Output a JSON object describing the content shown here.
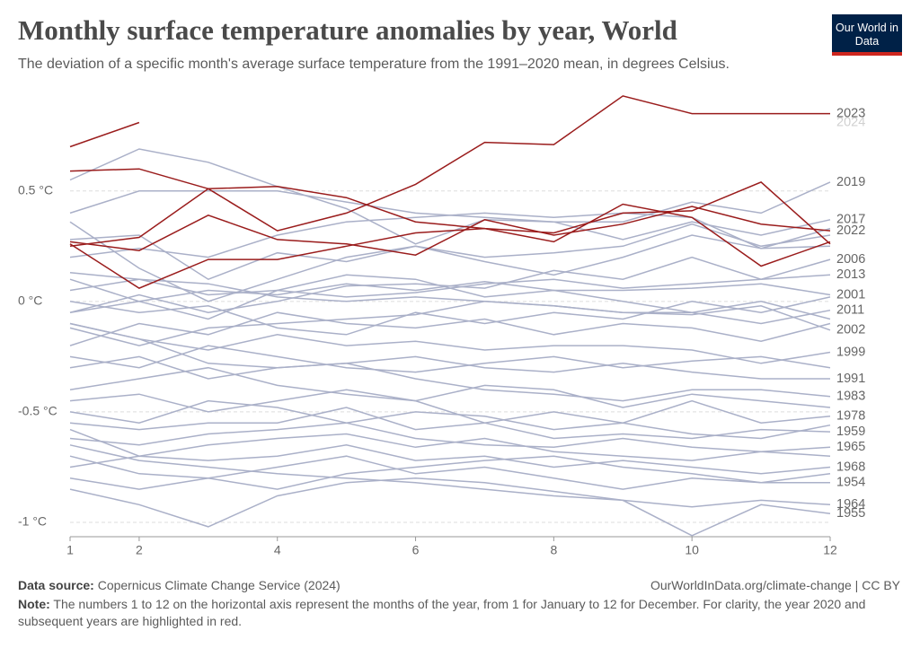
{
  "header": {
    "logo": "Our World in Data"
  },
  "footer": {
    "source_label": "Data source:",
    "source": "Copernicus Climate Change Service (2024)",
    "link": "OurWorldInData.org/climate-change | CC BY",
    "note_label": "Note:",
    "note": "The numbers 1 to 12 on the horizontal axis represent the months of the year, from 1 for January to 12 for December. For clarity, the year 2020 and subsequent years are highlighted in red."
  },
  "chart_data": {
    "type": "line",
    "title": "Monthly surface temperature anomalies by year, World",
    "subtitle": "The deviation of a specific month's average surface temperature from the 1991–2020 mean, in degrees Celsius.",
    "x": [
      1,
      2,
      3,
      4,
      5,
      6,
      7,
      8,
      9,
      10,
      11,
      12
    ],
    "xlim": [
      1,
      12
    ],
    "xticks": [
      1,
      2,
      4,
      6,
      8,
      10,
      12
    ],
    "ylim": [
      -1.065,
      0.95
    ],
    "yticks": [
      {
        "value": 0.5,
        "label": "0.5 °C"
      },
      {
        "value": 0,
        "label": "0 °C"
      },
      {
        "value": -0.5,
        "label": "-0.5 °C"
      },
      {
        "value": -1,
        "label": "-1 °C"
      }
    ],
    "grid": true,
    "series": [
      {
        "color": "#aab0c8",
        "values": [
          0.28,
          0.3,
          0.1,
          0.22,
          0.18,
          0.25,
          0.2,
          0.22,
          0.25,
          0.35,
          0.25,
          0.3
        ]
      },
      {
        "color": "#aab0c8",
        "values": [
          0.2,
          0.24,
          0.2,
          0.3,
          0.36,
          0.38,
          0.4,
          0.38,
          0.4,
          0.38,
          0.24,
          0.33
        ]
      },
      {
        "color": "#aab0c8",
        "values": [
          0.36,
          0.15,
          0.0,
          0.1,
          0.2,
          0.25,
          0.18,
          0.12,
          0.2,
          0.3,
          0.24,
          0.25
        ]
      },
      {
        "color": "#aab0c8",
        "values": [
          0.1,
          0.0,
          -0.08,
          0.05,
          0.12,
          0.1,
          0.02,
          0.05,
          0.0,
          -0.05,
          0.0,
          -0.08
        ]
      },
      {
        "color": "#aab0c8",
        "values": [
          -0.2,
          -0.1,
          -0.15,
          -0.05,
          -0.1,
          -0.12,
          -0.08,
          -0.15,
          -0.1,
          -0.12,
          -0.18,
          -0.1
        ]
      },
      {
        "color": "#aab0c8",
        "values": [
          -0.4,
          -0.35,
          -0.3,
          -0.38,
          -0.42,
          -0.45,
          -0.38,
          -0.4,
          -0.48,
          -0.42,
          -0.45,
          -0.48
        ]
      },
      {
        "color": "#aab0c8",
        "values": [
          -0.5,
          -0.55,
          -0.45,
          -0.48,
          -0.55,
          -0.5,
          -0.52,
          -0.58,
          -0.55,
          -0.6,
          -0.62,
          -0.56
        ]
      },
      {
        "color": "#aab0c8",
        "values": [
          -0.58,
          -0.7,
          -0.65,
          -0.62,
          -0.6,
          -0.66,
          -0.62,
          -0.68,
          -0.7,
          -0.72,
          -0.68,
          -0.7
        ]
      },
      {
        "color": "#aab0c8",
        "values": [
          -0.8,
          -0.85,
          -0.8,
          -0.85,
          -0.78,
          -0.75,
          -0.72,
          -0.7,
          -0.75,
          -0.78,
          -0.82,
          -0.78
        ]
      },
      {
        "color": "#aab0c8",
        "values": [
          -0.25,
          -0.3,
          -0.2,
          -0.25,
          -0.3,
          -0.32,
          -0.28,
          -0.25,
          -0.3,
          -0.27,
          -0.25,
          -0.3
        ]
      },
      {
        "color": "#aab0c8",
        "values": [
          0.0,
          -0.05,
          -0.02,
          -0.12,
          -0.15,
          -0.05,
          -0.1,
          -0.05,
          -0.08,
          0.0,
          -0.05,
          0.02
        ]
      },
      {
        "name": "2019",
        "color": "#aab0c8",
        "values": [
          0.4,
          0.5,
          0.5,
          0.5,
          0.45,
          0.4,
          0.38,
          0.36,
          0.36,
          0.45,
          0.4,
          0.54
        ]
      },
      {
        "name": "2017",
        "color": "#aab0c8",
        "values": [
          0.55,
          0.69,
          0.63,
          0.52,
          0.42,
          0.26,
          0.37,
          0.36,
          0.28,
          0.36,
          0.3,
          0.37
        ]
      },
      {
        "name": "2006",
        "color": "#aab0c8",
        "values": [
          -0.05,
          0.03,
          -0.05,
          0.0,
          0.07,
          0.08,
          0.06,
          0.14,
          0.1,
          0.2,
          0.1,
          0.19
        ]
      },
      {
        "name": "2013",
        "color": "#aab0c8",
        "values": [
          0.05,
          0.1,
          0.03,
          0.05,
          0.02,
          0.04,
          0.08,
          0.1,
          0.06,
          0.08,
          0.1,
          0.12
        ]
      },
      {
        "name": "2001",
        "color": "#aab0c8",
        "values": [
          -0.05,
          0.0,
          0.05,
          0.03,
          0.08,
          0.05,
          0.09,
          0.05,
          0.05,
          0.06,
          0.08,
          0.03
        ]
      },
      {
        "name": "2011",
        "color": "#aab0c8",
        "values": [
          -0.12,
          -0.2,
          -0.12,
          -0.1,
          -0.08,
          -0.06,
          0.0,
          -0.02,
          -0.05,
          -0.05,
          -0.1,
          -0.04
        ]
      },
      {
        "name": "2002",
        "color": "#aab0c8",
        "values": [
          0.13,
          0.1,
          0.08,
          0.02,
          0.0,
          0.02,
          0.0,
          -0.02,
          -0.05,
          -0.06,
          -0.02,
          -0.13
        ]
      },
      {
        "name": "1999",
        "color": "#aab0c8",
        "values": [
          -0.1,
          -0.17,
          -0.22,
          -0.15,
          -0.2,
          -0.18,
          -0.22,
          -0.2,
          -0.2,
          -0.22,
          -0.28,
          -0.23
        ]
      },
      {
        "name": "1991",
        "color": "#aab0c8",
        "values": [
          -0.3,
          -0.25,
          -0.35,
          -0.3,
          -0.28,
          -0.25,
          -0.3,
          -0.32,
          -0.28,
          -0.32,
          -0.35,
          -0.35
        ]
      },
      {
        "name": "1983",
        "color": "#aab0c8",
        "values": [
          -0.1,
          -0.17,
          -0.28,
          -0.3,
          -0.28,
          -0.35,
          -0.4,
          -0.42,
          -0.45,
          -0.4,
          -0.4,
          -0.43
        ]
      },
      {
        "name": "1978",
        "color": "#aab0c8",
        "values": [
          -0.45,
          -0.42,
          -0.5,
          -0.45,
          -0.4,
          -0.45,
          -0.55,
          -0.5,
          -0.55,
          -0.45,
          -0.55,
          -0.52
        ]
      },
      {
        "name": "1959",
        "color": "#aab0c8",
        "values": [
          -0.55,
          -0.58,
          -0.55,
          -0.55,
          -0.48,
          -0.58,
          -0.55,
          -0.62,
          -0.6,
          -0.62,
          -0.58,
          -0.59
        ]
      },
      {
        "name": "1965",
        "color": "#aab0c8",
        "values": [
          -0.62,
          -0.65,
          -0.6,
          -0.58,
          -0.55,
          -0.62,
          -0.65,
          -0.66,
          -0.62,
          -0.66,
          -0.68,
          -0.66
        ]
      },
      {
        "name": "1968",
        "color": "#aab0c8",
        "values": [
          -0.75,
          -0.7,
          -0.72,
          -0.7,
          -0.65,
          -0.72,
          -0.7,
          -0.75,
          -0.72,
          -0.75,
          -0.78,
          -0.75
        ]
      },
      {
        "name": "1954",
        "color": "#aab0c8",
        "values": [
          -0.7,
          -0.78,
          -0.8,
          -0.75,
          -0.7,
          -0.78,
          -0.75,
          -0.8,
          -0.85,
          -0.8,
          -0.82,
          -0.82
        ]
      },
      {
        "name": "1964",
        "color": "#aab0c8",
        "values": [
          -0.65,
          -0.72,
          -0.75,
          -0.78,
          -0.8,
          -0.82,
          -0.85,
          -0.88,
          -0.9,
          -0.93,
          -0.9,
          -0.92
        ]
      },
      {
        "name": "1955",
        "color": "#aab0c8",
        "values": [
          -0.85,
          -0.92,
          -1.02,
          -0.88,
          -0.82,
          -0.8,
          -0.82,
          -0.86,
          -0.9,
          -1.06,
          -0.92,
          -0.96
        ]
      },
      {
        "color": "#9a1c1c",
        "values": [
          0.59,
          0.6,
          0.51,
          0.52,
          0.47,
          0.36,
          0.33,
          0.31,
          0.4,
          0.41,
          0.54,
          0.26
        ]
      },
      {
        "color": "#9a1c1c",
        "values": [
          0.26,
          0.06,
          0.19,
          0.19,
          0.25,
          0.31,
          0.33,
          0.27,
          0.44,
          0.38,
          0.16,
          0.27
        ]
      },
      {
        "name": "2022",
        "color": "#9a1c1c",
        "values": [
          0.27,
          0.23,
          0.39,
          0.28,
          0.26,
          0.21,
          0.37,
          0.3,
          0.35,
          0.43,
          0.35,
          0.32
        ]
      },
      {
        "name": "2023",
        "color": "#9a1c1c",
        "values": [
          0.25,
          0.29,
          0.51,
          0.32,
          0.4,
          0.53,
          0.72,
          0.71,
          0.93,
          0.85,
          0.85,
          0.85
        ]
      },
      {
        "name": "2024",
        "color": "#9a1c1c",
        "values": [
          0.7,
          0.81,
          null,
          null,
          null,
          null,
          null,
          null,
          null,
          null,
          null,
          null
        ]
      }
    ]
  }
}
